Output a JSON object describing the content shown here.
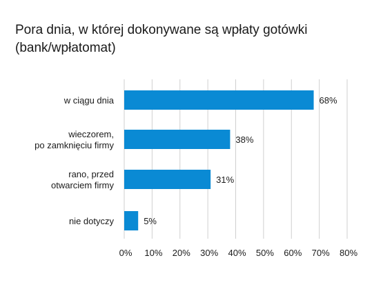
{
  "title": "Pora dnia, w której dokonywane są wpłaty gotówki (bank/wpłatomat)",
  "chart_data": {
    "type": "bar",
    "orientation": "horizontal",
    "title": "Pora dnia, w której dokonywane są wpłaty gotówki (bank/wpłatomat)",
    "categories": [
      [
        "w ciągu dnia"
      ],
      [
        "wieczorem,",
        "po zamknięciu firmy"
      ],
      [
        "rano, przed",
        "otwarciem firmy"
      ],
      [
        "nie dotyczy"
      ]
    ],
    "values": [
      68,
      38,
      31,
      5
    ],
    "value_labels": [
      "68%",
      "38%",
      "31%",
      "5%"
    ],
    "xlim": [
      0,
      80
    ],
    "ticks": [
      0,
      10,
      20,
      30,
      40,
      50,
      60,
      70,
      80
    ],
    "tick_labels": [
      "0%",
      "10%",
      "20%",
      "30%",
      "40%",
      "50%",
      "60%",
      "70%",
      "80%"
    ],
    "grid": "vertical",
    "bar_color": "#0a8ad4",
    "grid_color": "#cfcfcf"
  }
}
